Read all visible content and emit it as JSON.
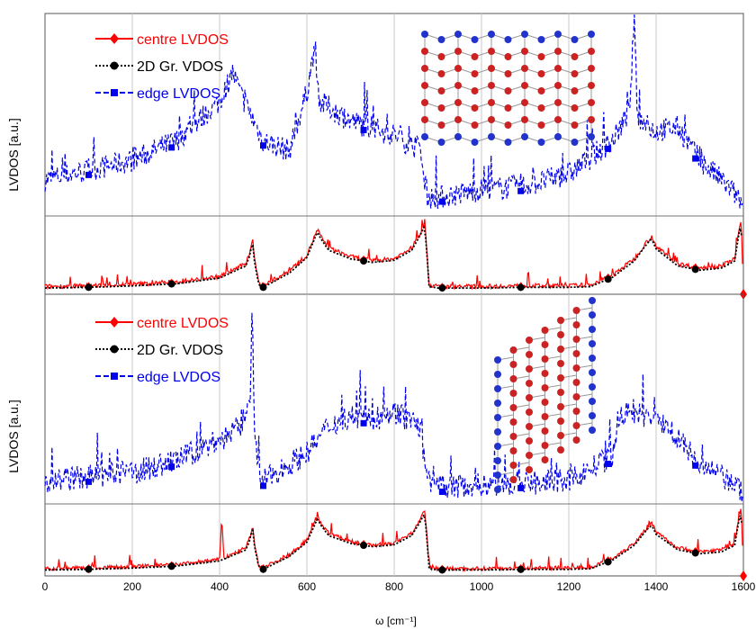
{
  "chart_data": [
    {
      "type": "line",
      "ylabel": "LVDOS [a.u.]",
      "xlabel": "",
      "xlim": [
        0,
        1600
      ],
      "grid": true,
      "legend": {
        "position": "top-left"
      },
      "inset": "armchair-edge graphene ribbon lattice",
      "series": [
        {
          "name": "centre LVDOS",
          "color": "#ff0000",
          "marker": "diamond",
          "line": "solid",
          "x": [
            0,
            100,
            200,
            300,
            400,
            460,
            470,
            475,
            480,
            490,
            500,
            560,
            600,
            620,
            625,
            630,
            650,
            700,
            750,
            800,
            840,
            860,
            870,
            875,
            880,
            900,
            1000,
            1100,
            1200,
            1250,
            1300,
            1350,
            1380,
            1390,
            1400,
            1450,
            1500,
            1550,
            1580,
            1590,
            1595,
            1600
          ],
          "y": [
            0.06,
            0.07,
            0.09,
            0.12,
            0.2,
            0.38,
            0.55,
            0.75,
            0.45,
            0.1,
            0.07,
            0.28,
            0.5,
            0.8,
            0.86,
            0.78,
            0.6,
            0.48,
            0.42,
            0.45,
            0.6,
            0.82,
            0.95,
            0.55,
            0.08,
            0.06,
            0.06,
            0.07,
            0.07,
            0.08,
            0.22,
            0.45,
            0.7,
            0.76,
            0.62,
            0.38,
            0.32,
            0.35,
            0.45,
            0.85,
            1.0,
            0.0
          ]
        },
        {
          "name": "2D Gr. VDOS",
          "color": "#000000",
          "marker": "circle",
          "line": "dotted",
          "x": [
            0,
            100,
            200,
            300,
            400,
            460,
            470,
            475,
            480,
            490,
            500,
            560,
            600,
            620,
            625,
            630,
            650,
            700,
            750,
            800,
            840,
            860,
            870,
            875,
            880,
            900,
            1000,
            1100,
            1200,
            1250,
            1300,
            1350,
            1380,
            1390,
            1400,
            1450,
            1500,
            1550,
            1580,
            1590,
            1595,
            1600
          ],
          "y": [
            0.05,
            0.06,
            0.08,
            0.11,
            0.19,
            0.36,
            0.52,
            0.72,
            0.42,
            0.09,
            0.06,
            0.26,
            0.48,
            0.78,
            0.84,
            0.76,
            0.58,
            0.46,
            0.41,
            0.44,
            0.58,
            0.8,
            0.93,
            0.52,
            0.07,
            0.05,
            0.05,
            0.06,
            0.06,
            0.07,
            0.2,
            0.43,
            0.68,
            0.74,
            0.6,
            0.36,
            0.3,
            0.33,
            0.43,
            0.83,
            0.98,
            0.0
          ]
        },
        {
          "name": "edge LVDOS",
          "color": "#0000ee",
          "marker": "square",
          "line": "dashed",
          "x": [
            0,
            100,
            200,
            300,
            400,
            430,
            450,
            500,
            560,
            600,
            615,
            630,
            700,
            800,
            860,
            870,
            880,
            900,
            1000,
            1100,
            1200,
            1300,
            1340,
            1350,
            1355,
            1360,
            1400,
            1450,
            1500,
            1550,
            1580,
            1590,
            1600
          ],
          "y": [
            0.15,
            0.2,
            0.25,
            0.35,
            0.55,
            0.7,
            0.58,
            0.35,
            0.3,
            0.6,
            0.8,
            0.55,
            0.45,
            0.38,
            0.3,
            0.12,
            0.06,
            0.06,
            0.1,
            0.12,
            0.18,
            0.35,
            0.5,
            1.0,
            0.6,
            0.45,
            0.4,
            0.42,
            0.25,
            0.15,
            0.08,
            0.05,
            0.0
          ]
        }
      ]
    },
    {
      "type": "line",
      "ylabel": "LVDOS [a.u.]",
      "xlabel": "ω [cm⁻¹]",
      "xlim": [
        0,
        1600
      ],
      "xticks": [
        "0",
        "200",
        "400",
        "600",
        "800",
        "1000",
        "1200",
        "1400",
        "1600"
      ],
      "grid": true,
      "legend": {
        "position": "top-left"
      },
      "inset": "zigzag-edge graphene ribbon lattice",
      "series": [
        {
          "name": "centre LVDOS",
          "color": "#ff0000",
          "marker": "diamond",
          "line": "solid",
          "x": [
            0,
            100,
            200,
            300,
            400,
            405,
            410,
            460,
            470,
            475,
            480,
            490,
            500,
            560,
            600,
            620,
            625,
            630,
            650,
            700,
            750,
            800,
            840,
            860,
            870,
            875,
            880,
            900,
            1000,
            1100,
            1200,
            1250,
            1300,
            1350,
            1380,
            1390,
            1400,
            1450,
            1500,
            1550,
            1580,
            1590,
            1595,
            1600
          ],
          "y": [
            0.06,
            0.07,
            0.09,
            0.12,
            0.2,
            0.85,
            0.22,
            0.38,
            0.55,
            0.72,
            0.45,
            0.1,
            0.07,
            0.28,
            0.5,
            0.8,
            0.86,
            0.78,
            0.6,
            0.48,
            0.42,
            0.45,
            0.6,
            0.82,
            0.95,
            0.55,
            0.08,
            0.06,
            0.06,
            0.07,
            0.07,
            0.08,
            0.22,
            0.45,
            0.7,
            0.76,
            0.62,
            0.38,
            0.32,
            0.35,
            0.45,
            0.85,
            1.0,
            0.0
          ]
        },
        {
          "name": "2D Gr. VDOS",
          "color": "#000000",
          "marker": "circle",
          "line": "dotted",
          "x": [
            0,
            100,
            200,
            300,
            400,
            460,
            470,
            475,
            480,
            490,
            500,
            560,
            600,
            620,
            625,
            630,
            650,
            700,
            750,
            800,
            840,
            860,
            870,
            875,
            880,
            900,
            1000,
            1100,
            1200,
            1250,
            1300,
            1350,
            1380,
            1390,
            1400,
            1450,
            1500,
            1550,
            1580,
            1590,
            1595,
            1600
          ],
          "y": [
            0.05,
            0.06,
            0.08,
            0.11,
            0.19,
            0.36,
            0.52,
            0.72,
            0.42,
            0.09,
            0.06,
            0.26,
            0.48,
            0.78,
            0.84,
            0.76,
            0.58,
            0.46,
            0.41,
            0.44,
            0.58,
            0.8,
            0.93,
            0.52,
            0.07,
            0.05,
            0.05,
            0.06,
            0.06,
            0.07,
            0.2,
            0.43,
            0.68,
            0.74,
            0.6,
            0.36,
            0.3,
            0.33,
            0.43,
            0.83,
            0.98,
            0.0
          ]
        },
        {
          "name": "edge LVDOS",
          "color": "#0000ee",
          "marker": "square",
          "line": "dashed",
          "x": [
            0,
            100,
            200,
            300,
            400,
            450,
            470,
            475,
            480,
            490,
            500,
            600,
            650,
            700,
            750,
            800,
            860,
            870,
            880,
            900,
            1000,
            1100,
            1200,
            1300,
            1320,
            1340,
            1400,
            1450,
            1500,
            1550,
            1580,
            1590,
            1600
          ],
          "y": [
            0.08,
            0.1,
            0.12,
            0.18,
            0.28,
            0.35,
            0.5,
            1.0,
            0.3,
            0.1,
            0.08,
            0.22,
            0.35,
            0.4,
            0.38,
            0.42,
            0.35,
            0.15,
            0.06,
            0.05,
            0.06,
            0.07,
            0.08,
            0.2,
            0.4,
            0.42,
            0.38,
            0.3,
            0.15,
            0.1,
            0.06,
            0.04,
            0.0
          ]
        }
      ]
    }
  ]
}
